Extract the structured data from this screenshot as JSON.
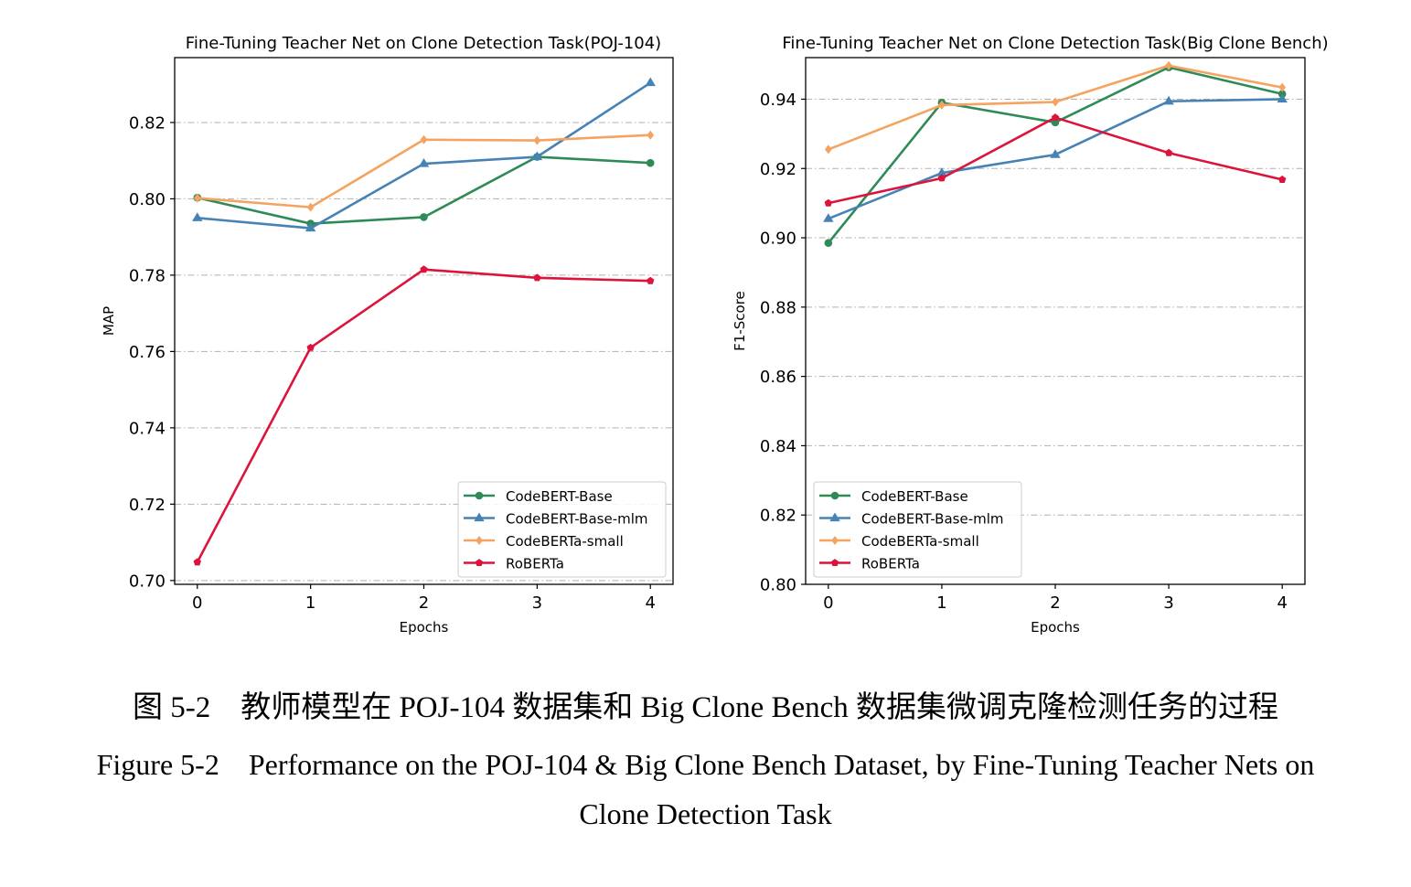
{
  "chart_data": [
    {
      "type": "line",
      "title": "Fine-Tuning Teacher Net on Clone Detection Task(POJ-104)",
      "xlabel": "Epochs",
      "ylabel": "MAP",
      "x": [
        0,
        1,
        2,
        3,
        4
      ],
      "xlim": [
        -0.2,
        4.2
      ],
      "ylim": [
        0.699,
        0.837
      ],
      "yticks": [
        0.7,
        0.72,
        0.74,
        0.76,
        0.78,
        0.8,
        0.82
      ],
      "ytick_labels": [
        "0.70",
        "0.72",
        "0.74",
        "0.76",
        "0.78",
        "0.80",
        "0.82"
      ],
      "grid": "horizontal dash-dot",
      "legend_position": "lower-right",
      "series": [
        {
          "name": "CodeBERT-Base",
          "color": "#2e8b57",
          "marker": "circle",
          "values": [
            0.8003,
            0.7935,
            0.7952,
            0.811,
            0.8094
          ]
        },
        {
          "name": "CodeBERT-Base-mlm",
          "color": "#4682b4",
          "marker": "triangle",
          "values": [
            0.795,
            0.7923,
            0.8092,
            0.811,
            0.8304
          ]
        },
        {
          "name": "CodeBERTa-small",
          "color": "#f4a460",
          "marker": "diamond",
          "values": [
            0.8002,
            0.7978,
            0.8155,
            0.8153,
            0.8167
          ]
        },
        {
          "name": "RoBERTa",
          "color": "#dc143c",
          "marker": "pentagon",
          "values": [
            0.7048,
            0.761,
            0.7815,
            0.7793,
            0.7785
          ]
        }
      ]
    },
    {
      "type": "line",
      "title": "Fine-Tuning Teacher Net on Clone Detection Task(Big Clone Bench)",
      "xlabel": "Epochs",
      "ylabel": "F1-Score",
      "x": [
        0,
        1,
        2,
        3,
        4
      ],
      "xlim": [
        -0.2,
        4.2
      ],
      "ylim": [
        0.8,
        0.952
      ],
      "yticks": [
        0.8,
        0.82,
        0.84,
        0.86,
        0.88,
        0.9,
        0.92,
        0.94
      ],
      "ytick_labels": [
        "0.80",
        "0.82",
        "0.84",
        "0.86",
        "0.88",
        "0.90",
        "0.92",
        "0.94"
      ],
      "grid": "horizontal dash-dot",
      "legend_position": "lower-left",
      "series": [
        {
          "name": "CodeBERT-Base",
          "color": "#2e8b57",
          "marker": "circle",
          "values": [
            0.8985,
            0.939,
            0.9333,
            0.9492,
            0.9415
          ]
        },
        {
          "name": "CodeBERT-Base-mlm",
          "color": "#4682b4",
          "marker": "triangle",
          "values": [
            0.9055,
            0.9187,
            0.924,
            0.9394,
            0.94
          ]
        },
        {
          "name": "CodeBERTa-small",
          "color": "#f4a460",
          "marker": "diamond",
          "values": [
            0.9255,
            0.9383,
            0.9392,
            0.9497,
            0.9434
          ]
        },
        {
          "name": "RoBERTa",
          "color": "#dc143c",
          "marker": "pentagon",
          "values": [
            0.91,
            0.9172,
            0.9347,
            0.9245,
            0.9168
          ]
        }
      ]
    }
  ],
  "captions": {
    "zh": "图 5-2　教师模型在 POJ-104 数据集和 Big Clone Bench 数据集微调克隆检测任务的过程",
    "en_line1": "Figure 5-2　Performance on the POJ-104 & Big Clone Bench Dataset, by Fine-Tuning Teacher Nets on",
    "en_line2": "Clone Detection Task"
  }
}
